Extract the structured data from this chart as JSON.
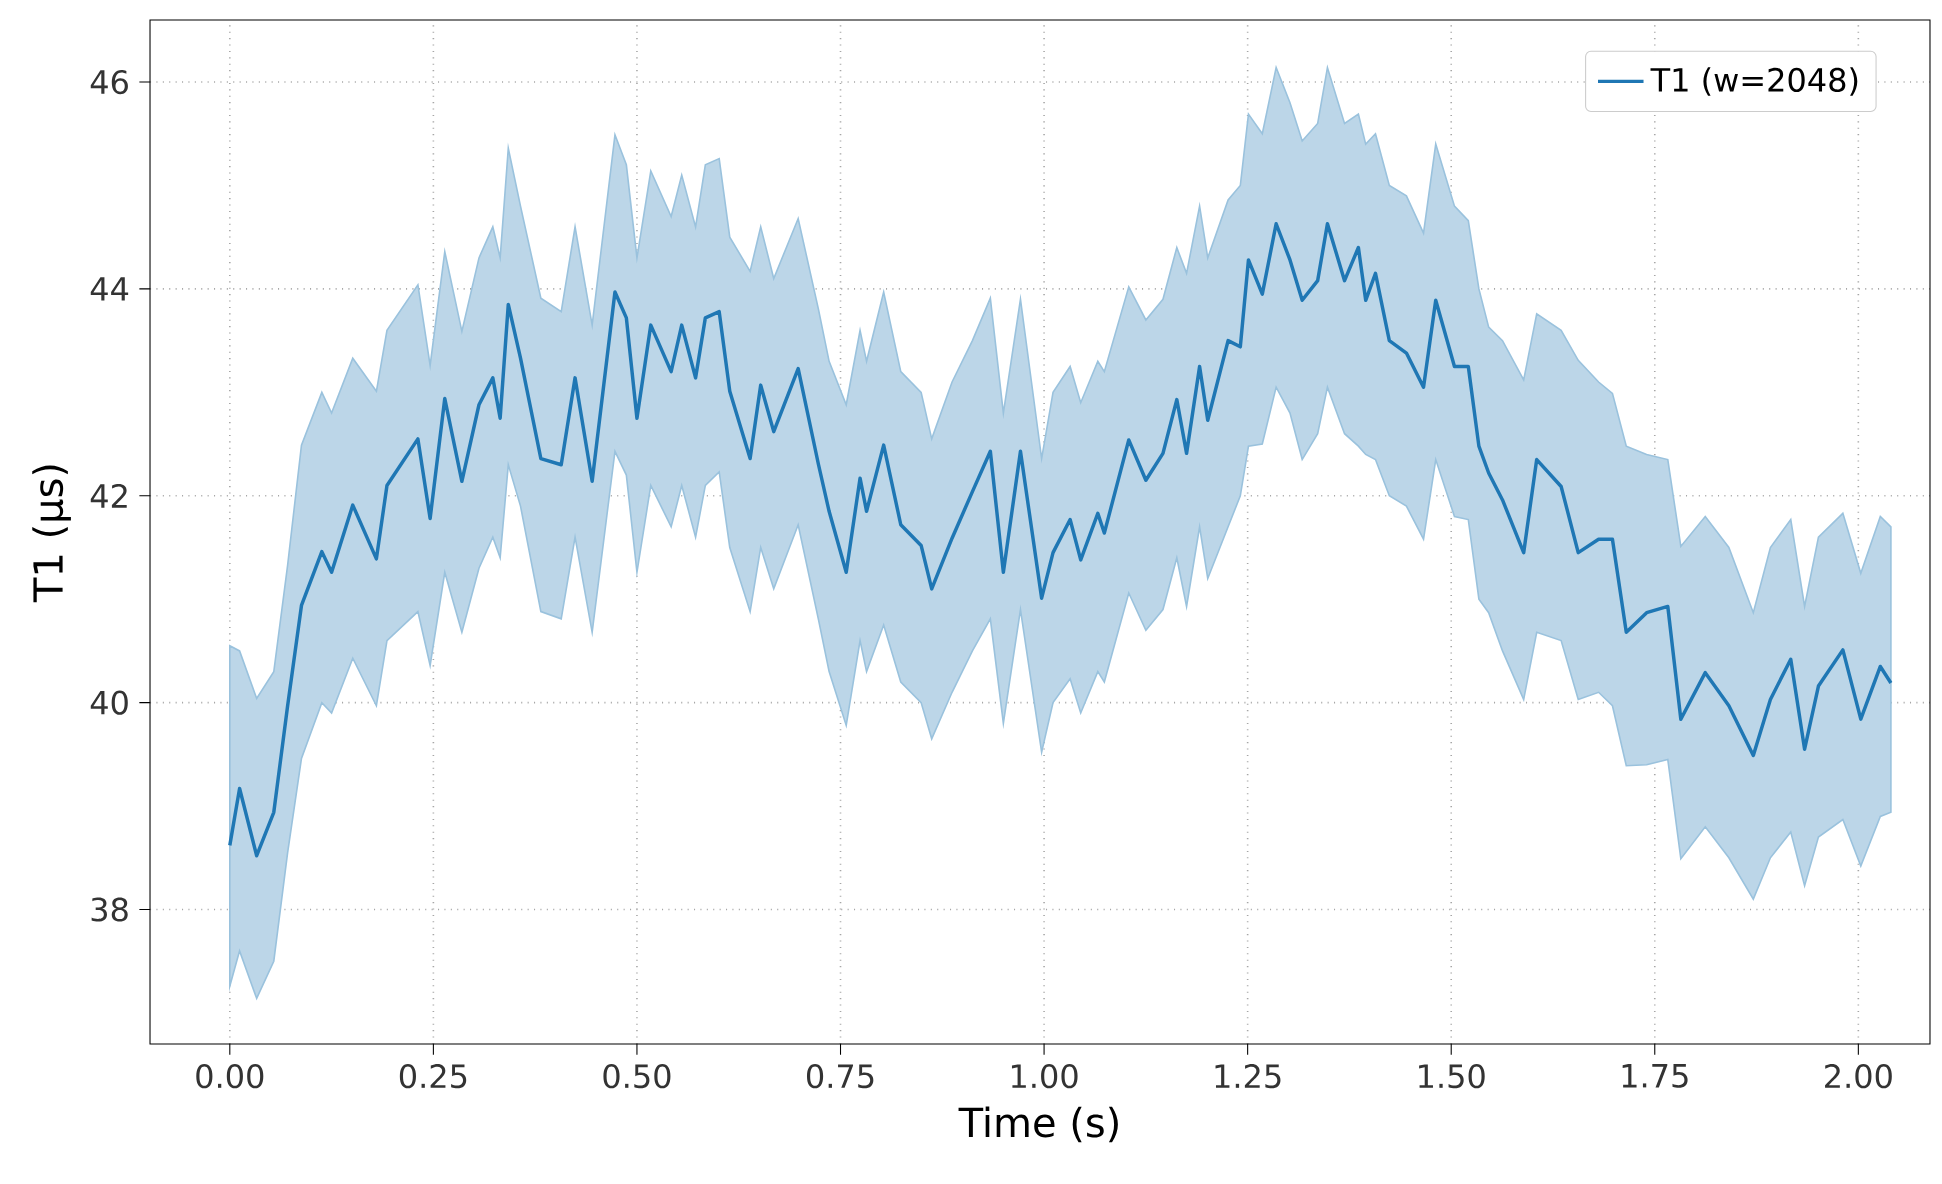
{
  "chart_data": {
    "type": "line",
    "xlabel": "Time (s)",
    "ylabel": "T1 (μs)",
    "xlim": [
      -0.098,
      2.088
    ],
    "ylim": [
      36.7,
      46.6
    ],
    "xticks": [
      {
        "value": 0,
        "label": "0.00"
      },
      {
        "value": 0.25,
        "label": "0.25"
      },
      {
        "value": 0.5,
        "label": "0.50"
      },
      {
        "value": 0.75,
        "label": "0.75"
      },
      {
        "value": 1,
        "label": "1.00"
      },
      {
        "value": 1.25,
        "label": "1.25"
      },
      {
        "value": 1.5,
        "label": "1.50"
      },
      {
        "value": 1.75,
        "label": "1.75"
      },
      {
        "value": 2,
        "label": "2.00"
      }
    ],
    "yticks": [
      38,
      40,
      42,
      44,
      46
    ],
    "grid": true,
    "legend": "top right",
    "marker": "none",
    "line_style": "solid",
    "x": [
      0.0,
      0.012,
      0.033,
      0.054,
      0.071,
      0.088,
      0.113,
      0.125,
      0.151,
      0.18,
      0.193,
      0.231,
      0.246,
      0.264,
      0.285,
      0.306,
      0.323,
      0.332,
      0.342,
      0.357,
      0.382,
      0.407,
      0.424,
      0.445,
      0.473,
      0.487,
      0.5,
      0.517,
      0.542,
      0.555,
      0.572,
      0.584,
      0.601,
      0.614,
      0.639,
      0.652,
      0.668,
      0.698,
      0.723,
      0.736,
      0.757,
      0.774,
      0.782,
      0.803,
      0.824,
      0.849,
      0.862,
      0.887,
      0.912,
      0.934,
      0.95,
      0.971,
      0.997,
      1.011,
      1.032,
      1.045,
      1.066,
      1.074,
      1.104,
      1.125,
      1.146,
      1.163,
      1.175,
      1.191,
      1.201,
      1.226,
      1.241,
      1.251,
      1.268,
      1.285,
      1.302,
      1.317,
      1.336,
      1.348,
      1.369,
      1.386,
      1.395,
      1.407,
      1.424,
      1.445,
      1.466,
      1.481,
      1.504,
      1.521,
      1.534,
      1.546,
      1.563,
      1.589,
      1.605,
      1.635,
      1.656,
      1.681,
      1.698,
      1.715,
      1.74,
      1.766,
      1.782,
      1.812,
      1.841,
      1.871,
      1.892,
      1.917,
      1.934,
      1.951,
      1.981,
      2.003,
      2.027,
      2.04
    ],
    "series": [
      {
        "name": "T1 (w=2048)",
        "color": "#1f77b4",
        "values": [
          38.62,
          39.17,
          38.52,
          38.94,
          39.97,
          40.94,
          41.46,
          41.26,
          41.91,
          41.39,
          42.1,
          42.55,
          41.78,
          42.94,
          42.14,
          42.88,
          43.14,
          42.75,
          43.85,
          43.33,
          42.36,
          42.3,
          43.14,
          42.14,
          43.97,
          43.72,
          42.75,
          43.65,
          43.2,
          43.65,
          43.14,
          43.72,
          43.78,
          43.01,
          42.36,
          43.07,
          42.62,
          43.23,
          42.3,
          41.85,
          41.26,
          42.17,
          41.85,
          42.49,
          41.72,
          41.52,
          41.1,
          41.59,
          42.04,
          42.43,
          41.26,
          42.43,
          41.01,
          41.45,
          41.77,
          41.38,
          41.83,
          41.64,
          42.54,
          42.15,
          42.41,
          42.93,
          42.41,
          43.25,
          42.73,
          43.5,
          43.44,
          44.28,
          43.95,
          44.63,
          44.28,
          43.89,
          44.08,
          44.63,
          44.08,
          44.4,
          43.89,
          44.15,
          43.5,
          43.38,
          43.05,
          43.89,
          43.25,
          43.25,
          42.48,
          42.22,
          41.96,
          41.45,
          42.35,
          42.09,
          41.45,
          41.58,
          41.58,
          40.68,
          40.87,
          40.93,
          39.84,
          40.29,
          39.97,
          39.49,
          40.03,
          40.42,
          39.55,
          40.16,
          40.51,
          39.84,
          40.35,
          40.19
        ],
        "lower": [
          37.26,
          37.6,
          37.14,
          37.5,
          38.55,
          39.46,
          40.0,
          39.9,
          40.43,
          39.97,
          40.6,
          40.88,
          40.36,
          41.26,
          40.68,
          41.3,
          41.6,
          41.4,
          42.3,
          41.9,
          40.88,
          40.81,
          41.6,
          40.68,
          42.43,
          42.2,
          41.26,
          42.1,
          41.7,
          42.1,
          41.6,
          42.1,
          42.23,
          41.5,
          40.88,
          41.5,
          41.1,
          41.72,
          40.8,
          40.3,
          39.78,
          40.6,
          40.3,
          40.75,
          40.2,
          40.0,
          39.65,
          40.1,
          40.5,
          40.81,
          39.8,
          40.9,
          39.52,
          40.0,
          40.23,
          39.9,
          40.3,
          40.2,
          41.06,
          40.7,
          40.9,
          41.4,
          40.93,
          41.7,
          41.2,
          41.7,
          42.0,
          42.48,
          42.5,
          43.05,
          42.8,
          42.35,
          42.6,
          43.05,
          42.6,
          42.48,
          42.4,
          42.35,
          42.0,
          41.9,
          41.58,
          42.35,
          41.8,
          41.77,
          41.0,
          40.87,
          40.5,
          40.03,
          40.68,
          40.6,
          40.03,
          40.1,
          39.97,
          39.39,
          39.4,
          39.45,
          38.49,
          38.8,
          38.5,
          38.1,
          38.5,
          38.75,
          38.23,
          38.7,
          38.87,
          38.42,
          38.9,
          38.94
        ],
        "upper": [
          40.55,
          40.5,
          40.04,
          40.3,
          41.33,
          42.49,
          43.0,
          42.8,
          43.33,
          43.01,
          43.6,
          44.04,
          43.26,
          44.36,
          43.59,
          44.3,
          44.6,
          44.3,
          45.36,
          44.8,
          43.91,
          43.78,
          44.6,
          43.65,
          45.49,
          45.2,
          44.3,
          45.14,
          44.7,
          45.1,
          44.6,
          45.2,
          45.26,
          44.5,
          44.17,
          44.6,
          44.1,
          44.68,
          43.8,
          43.3,
          42.88,
          43.6,
          43.3,
          43.97,
          43.2,
          43.0,
          42.55,
          43.1,
          43.5,
          43.91,
          42.8,
          43.9,
          42.36,
          43.0,
          43.25,
          42.9,
          43.3,
          43.2,
          44.02,
          43.7,
          43.9,
          44.4,
          44.15,
          44.8,
          44.3,
          44.86,
          45.0,
          45.69,
          45.5,
          46.14,
          45.8,
          45.43,
          45.6,
          46.14,
          45.6,
          45.69,
          45.4,
          45.5,
          45.0,
          44.9,
          44.54,
          45.4,
          44.8,
          44.66,
          44.0,
          43.63,
          43.5,
          43.12,
          43.76,
          43.6,
          43.31,
          43.1,
          42.99,
          42.48,
          42.4,
          42.35,
          41.51,
          41.8,
          41.5,
          40.87,
          41.5,
          41.77,
          40.93,
          41.6,
          41.83,
          41.25,
          41.8,
          41.7
        ]
      }
    ]
  }
}
